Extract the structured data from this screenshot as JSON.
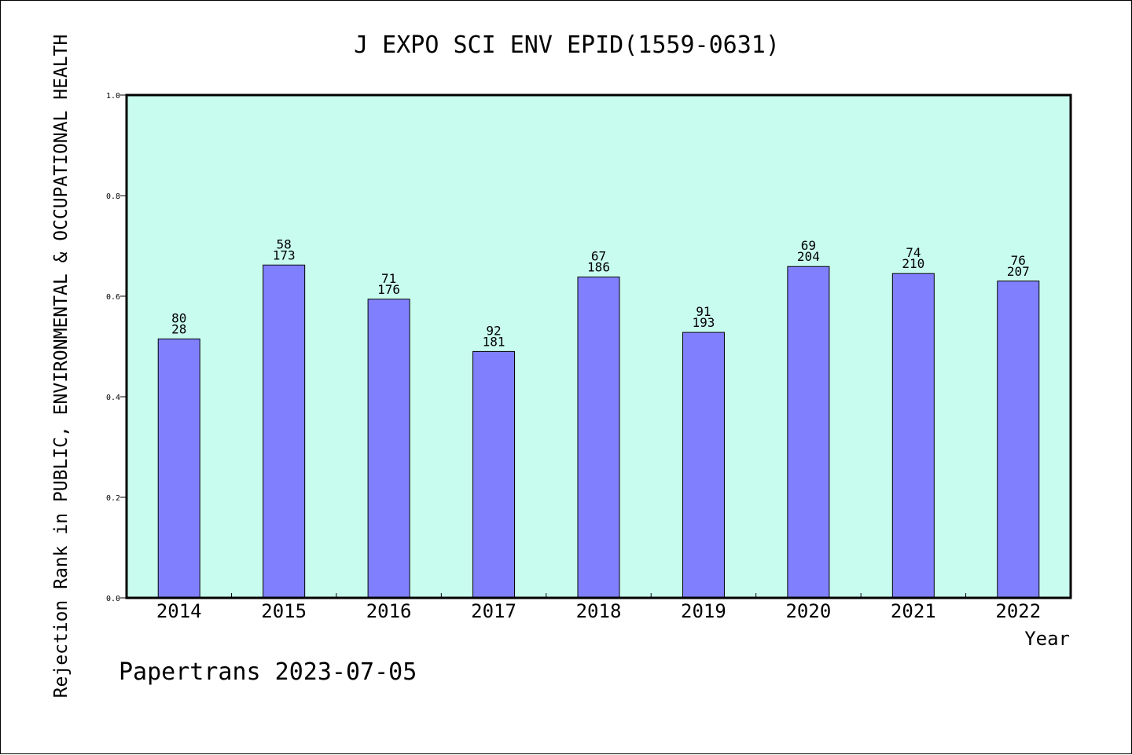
{
  "chart_data": {
    "type": "bar",
    "title": "J EXPO SCI ENV EPID(1559-0631)",
    "xlabel": "Year",
    "ylabel": "Rejection Rank in PUBLIC, ENVIRONMENTAL & OCCUPATIONAL HEALTH",
    "categories": [
      "2014",
      "2015",
      "2016",
      "2017",
      "2018",
      "2019",
      "2020",
      "2021",
      "2022"
    ],
    "values": [
      0.515,
      0.662,
      0.594,
      0.49,
      0.638,
      0.528,
      0.659,
      0.645,
      0.63
    ],
    "labels_top": [
      "80",
      "58",
      "71",
      "92",
      "67",
      "91",
      "69",
      "74",
      "76"
    ],
    "labels_bottom": [
      "28",
      "173",
      "176",
      "181",
      "186",
      "193",
      "204",
      "210",
      "207"
    ],
    "ylim": [
      0,
      1.0
    ],
    "yticks": [
      "0.0",
      "0.2",
      "0.4",
      "0.6",
      "0.8",
      "1.0"
    ],
    "grid": false,
    "colors": {
      "plot_background": "#c8fcee",
      "bar_fill": "#8080ff",
      "bar_stroke": "#000000"
    }
  },
  "footer": "Papertrans 2023-07-05"
}
